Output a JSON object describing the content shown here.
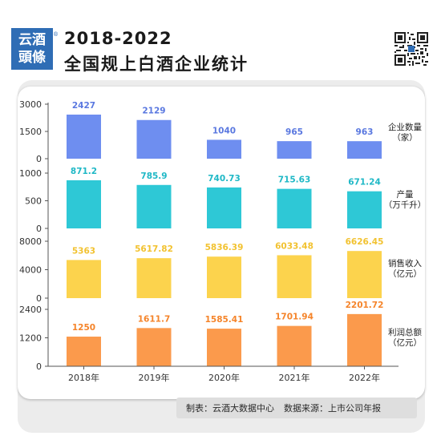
{
  "header": {
    "logo_line1": "云酒",
    "logo_line2": "頭條",
    "logo_mark": "®",
    "title_line1": "2018-2022",
    "title_line2": "全国规上白酒企业统计"
  },
  "footer": {
    "maker": "制表：云酒大数据中心",
    "source": "数据来源：上市公司年报"
  },
  "chart_data": {
    "type": "bar",
    "categories": [
      "2018年",
      "2019年",
      "2020年",
      "2021年",
      "2022年"
    ],
    "panels": [
      {
        "name": "企业数量\n（家）",
        "values": [
          2427,
          2129,
          1040,
          965,
          963
        ],
        "labels": [
          "2427",
          "2129",
          "1040",
          "965",
          "963"
        ],
        "ylim": [
          0,
          3000
        ],
        "ticks": [
          0,
          1500,
          3000
        ],
        "color": "#6e8ef0",
        "label_color": "#5a78e0"
      },
      {
        "name": "产量\n（万千升）",
        "values": [
          871.2,
          785.9,
          740.73,
          715.63,
          671.24
        ],
        "labels": [
          "871.2",
          "785.9",
          "740.73",
          "715.63",
          "671.24"
        ],
        "ylim": [
          0,
          1000
        ],
        "ticks": [
          0,
          500,
          1000
        ],
        "color": "#2ec8d6",
        "label_color": "#1fb8c6"
      },
      {
        "name": "销售收入\n（亿元）",
        "values": [
          5363,
          5617.82,
          5836.39,
          6033.48,
          6626.45
        ],
        "labels": [
          "5363",
          "5617.82",
          "5836.39",
          "6033.48",
          "6626.45"
        ],
        "ylim": [
          0,
          8000
        ],
        "ticks": [
          0,
          4000,
          8000
        ],
        "color": "#fcd34d",
        "label_color": "#f2c230"
      },
      {
        "name": "利润总额\n（亿元）",
        "values": [
          1250,
          1611.7,
          1585.41,
          1701.94,
          2201.72
        ],
        "labels": [
          "1250",
          "1611.7",
          "1585.41",
          "1701.94",
          "2201.72"
        ],
        "ylim": [
          0,
          2400
        ],
        "ticks": [
          0,
          1200,
          2400
        ],
        "color": "#fb9a4c",
        "label_color": "#f5842a"
      }
    ],
    "grid": false
  }
}
